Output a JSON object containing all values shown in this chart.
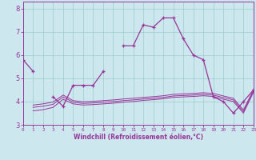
{
  "xlabel": "Windchill (Refroidissement éolien,°C)",
  "background_color": "#cce8ee",
  "grid_color": "#99cccc",
  "line_color": "#993399",
  "xlim": [
    0,
    23
  ],
  "ylim": [
    3,
    8.3
  ],
  "yticks": [
    3,
    4,
    5,
    6,
    7,
    8
  ],
  "xticks": [
    0,
    1,
    2,
    3,
    4,
    5,
    6,
    7,
    8,
    9,
    10,
    11,
    12,
    13,
    14,
    15,
    16,
    17,
    18,
    19,
    20,
    21,
    22,
    23
  ],
  "main_segments": [
    {
      "x": [
        0,
        1
      ],
      "y": [
        5.8,
        5.3
      ]
    },
    {
      "x": [
        3,
        4,
        5,
        6,
        7,
        8
      ],
      "y": [
        4.2,
        3.8,
        4.7,
        4.7,
        4.7,
        5.3
      ]
    },
    {
      "x": [
        10,
        11,
        12,
        13,
        14,
        15,
        16,
        17,
        18,
        19,
        20,
        21,
        22,
        23
      ],
      "y": [
        6.4,
        6.4,
        7.3,
        7.2,
        7.6,
        7.6,
        6.7,
        6.0,
        5.8,
        4.2,
        4.0,
        3.5,
        4.0,
        4.5
      ]
    }
  ],
  "flat_x": [
    1,
    2,
    3,
    4,
    5,
    6,
    7,
    8,
    9,
    10,
    11,
    12,
    13,
    14,
    15,
    16,
    17,
    18,
    19,
    20,
    21,
    22,
    23
  ],
  "flat1_y": [
    3.6,
    3.65,
    3.75,
    4.1,
    3.9,
    3.85,
    3.87,
    3.9,
    3.93,
    3.97,
    4.0,
    4.05,
    4.08,
    4.12,
    4.18,
    4.2,
    4.22,
    4.25,
    4.22,
    4.1,
    4.0,
    3.5,
    4.4
  ],
  "flat2_y": [
    3.75,
    3.8,
    3.88,
    4.2,
    3.97,
    3.92,
    3.94,
    3.97,
    4.0,
    4.04,
    4.07,
    4.11,
    4.14,
    4.18,
    4.24,
    4.26,
    4.28,
    4.31,
    4.28,
    4.17,
    4.07,
    3.57,
    4.45
  ],
  "flat3_y": [
    3.85,
    3.9,
    3.98,
    4.28,
    4.04,
    3.99,
    4.01,
    4.04,
    4.07,
    4.11,
    4.14,
    4.18,
    4.21,
    4.25,
    4.31,
    4.33,
    4.35,
    4.38,
    4.35,
    4.24,
    4.14,
    3.64,
    4.5
  ]
}
